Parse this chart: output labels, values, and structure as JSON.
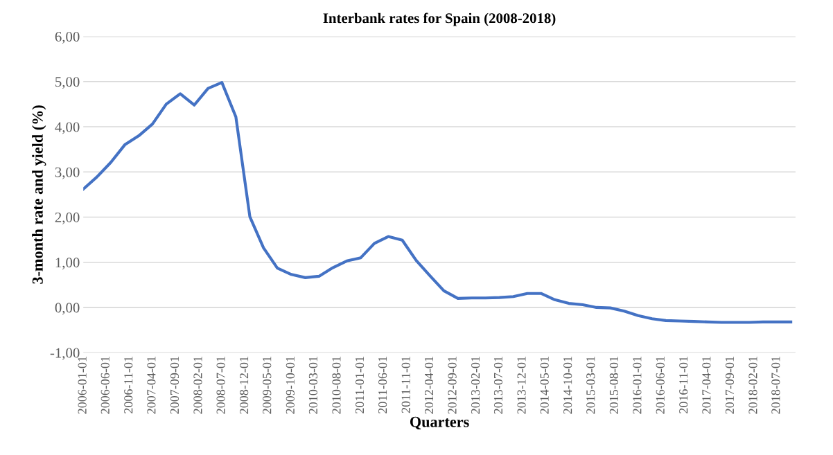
{
  "chart_data": {
    "type": "line",
    "title": "Interbank rates for Spain (2008-2018)",
    "xlabel": "Quarters",
    "ylabel": "3-month rate and yield (%)",
    "x": [
      "2006-01-01",
      "2006-04-01",
      "2006-07-01",
      "2006-10-01",
      "2007-01-01",
      "2007-04-01",
      "2007-07-01",
      "2007-10-01",
      "2008-01-01",
      "2008-04-01",
      "2008-07-01",
      "2008-10-01",
      "2009-01-01",
      "2009-04-01",
      "2009-07-01",
      "2009-10-01",
      "2010-01-01",
      "2010-04-01",
      "2010-07-01",
      "2010-10-01",
      "2011-01-01",
      "2011-04-01",
      "2011-07-01",
      "2011-10-01",
      "2012-01-01",
      "2012-04-01",
      "2012-07-01",
      "2012-10-01",
      "2013-01-01",
      "2013-04-01",
      "2013-07-01",
      "2013-10-01",
      "2014-01-01",
      "2014-04-01",
      "2014-07-01",
      "2014-10-01",
      "2015-01-01",
      "2015-04-01",
      "2015-07-01",
      "2015-10-01",
      "2016-01-01",
      "2016-04-01",
      "2016-07-01",
      "2016-10-01",
      "2017-01-01",
      "2017-04-01",
      "2017-07-01",
      "2017-10-01",
      "2018-01-01",
      "2018-04-01",
      "2018-07-01",
      "2018-10-01"
    ],
    "series": [
      {
        "color": "#4472c4",
        "values": [
          2.62,
          2.89,
          3.21,
          3.6,
          3.8,
          4.06,
          4.5,
          4.73,
          4.48,
          4.85,
          4.98,
          4.22,
          2.01,
          1.32,
          0.87,
          0.73,
          0.66,
          0.69,
          0.88,
          1.03,
          1.1,
          1.42,
          1.57,
          1.49,
          1.04,
          0.7,
          0.37,
          0.2,
          0.21,
          0.21,
          0.22,
          0.24,
          0.31,
          0.31,
          0.17,
          0.09,
          0.06,
          0.0,
          -0.01,
          -0.08,
          -0.18,
          -0.25,
          -0.29,
          -0.3,
          -0.31,
          -0.32,
          -0.33,
          -0.33,
          -0.33,
          -0.32,
          -0.32,
          -0.32
        ]
      }
    ],
    "xlim": [
      "2006-01-01",
      "2018-11-01"
    ],
    "xticks": [
      "2006-01-01",
      "2006-06-01",
      "2006-11-01",
      "2007-04-01",
      "2007-09-01",
      "2008-02-01",
      "2008-07-01",
      "2008-12-01",
      "2009-05-01",
      "2009-10-01",
      "2010-03-01",
      "2010-08-01",
      "2011-01-01",
      "2011-06-01",
      "2011-11-01",
      "2012-04-01",
      "2012-09-01",
      "2013-02-01",
      "2013-07-01",
      "2013-12-01",
      "2014-05-01",
      "2014-10-01",
      "2015-03-01",
      "2015-08-01",
      "2016-01-01",
      "2016-06-01",
      "2016-11-01",
      "2017-04-01",
      "2017-09-01",
      "2018-02-01",
      "2018-07-01"
    ],
    "ylim": [
      -1,
      6
    ],
    "yticks": [
      {
        "value": -1,
        "label": "-1,00"
      },
      {
        "value": 0,
        "label": "0,00"
      },
      {
        "value": 1,
        "label": "1,00"
      },
      {
        "value": 2,
        "label": "2,00"
      },
      {
        "value": 3,
        "label": "3,00"
      },
      {
        "value": 4,
        "label": "4,00"
      },
      {
        "value": 5,
        "label": "5,00"
      },
      {
        "value": 6,
        "label": "6,00"
      }
    ],
    "grid": "y",
    "legend": false,
    "marker": "none",
    "line_style": "solid"
  }
}
